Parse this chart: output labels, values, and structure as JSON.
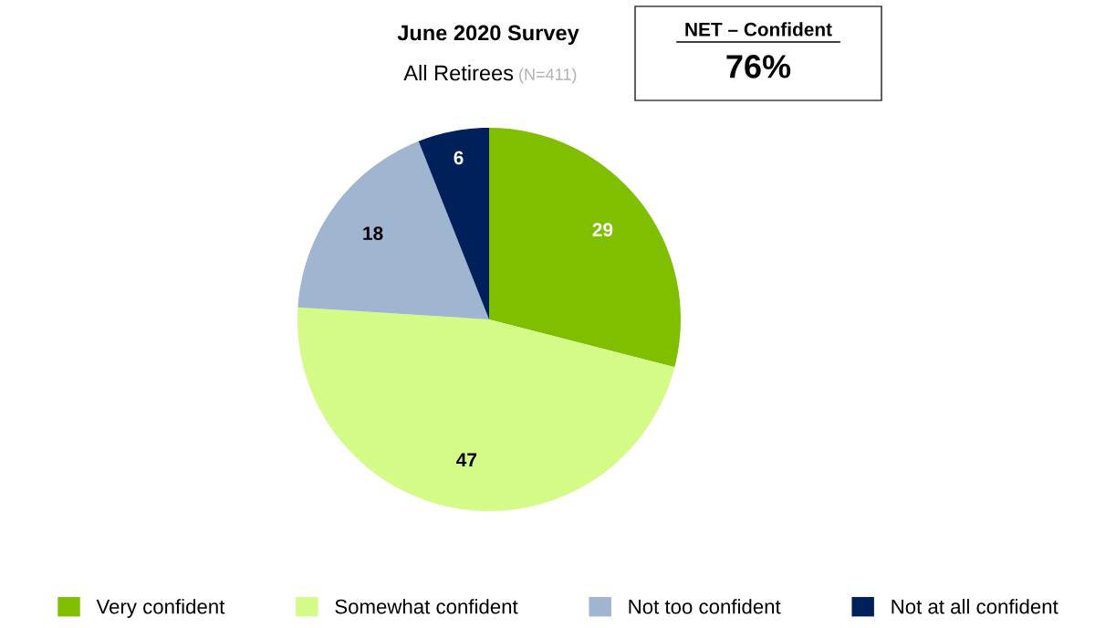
{
  "chart_data": {
    "type": "pie",
    "title": "June 2020 Survey",
    "subtitle": "All Retirees",
    "categories": [
      "Very confident",
      "Somewhat confident",
      "Not too confident",
      "Not at all confident"
    ],
    "values": [
      29,
      47,
      18,
      6
    ],
    "colors": [
      "#7fbf00",
      "#d4fb88",
      "#a0b5d0",
      "#00205b"
    ],
    "data_labels": true,
    "legend": "bottom",
    "annotations": [
      "(N=411)",
      "NET – Confident",
      "76%"
    ]
  }
}
